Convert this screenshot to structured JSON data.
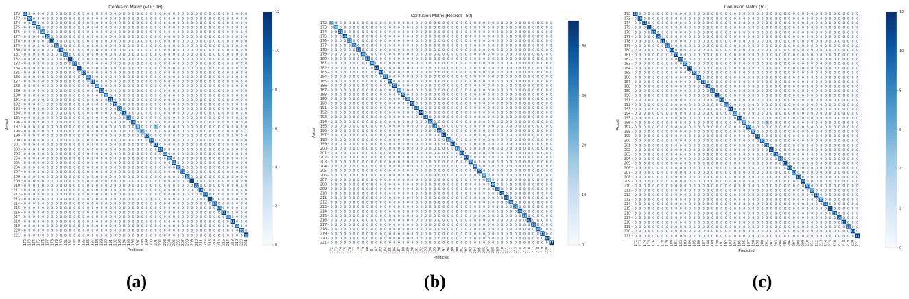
{
  "captions": [
    "(a)",
    "(b)",
    "(c)"
  ],
  "chart_data": [
    {
      "type": "heatmap",
      "title": "Confusion Matrix (VGG 16)",
      "xlabel": "Predicted",
      "ylabel": "Actual",
      "labels_start": 172,
      "labels_end": 221,
      "diagonal": [
        11,
        10,
        11,
        10,
        10,
        10,
        11,
        10,
        10,
        10,
        11,
        10,
        11,
        10,
        10,
        11,
        10,
        10,
        10,
        11,
        11,
        10,
        10,
        10,
        10,
        8,
        6,
        10,
        10,
        11,
        10,
        10,
        10,
        11,
        10,
        10,
        10,
        11,
        10,
        10,
        10,
        11,
        10,
        10,
        11,
        10,
        11,
        11,
        10,
        12
      ],
      "off_diagonal": [
        {
          "actual": 197,
          "predicted": 201,
          "value": 5
        },
        {
          "actual": 198,
          "predicted": 197,
          "value": 2
        },
        {
          "actual": 198,
          "predicted": 221,
          "value": 1
        },
        {
          "actual": 192,
          "predicted": 176,
          "value": 1
        },
        {
          "actual": 192,
          "predicted": 180,
          "value": 1
        },
        {
          "actual": 213,
          "predicted": 200,
          "value": 1
        }
      ],
      "colorbar": {
        "min": 0,
        "max": 12,
        "ticks": [
          0,
          2,
          4,
          6,
          8,
          10,
          12
        ]
      }
    },
    {
      "type": "heatmap",
      "title": "Confusion Matrix (ResNet - 50)",
      "xlabel": "Predicted",
      "ylabel": "Actual",
      "labels_start": 172,
      "labels_end": 221,
      "diagonal": [
        18,
        30,
        36,
        40,
        32,
        35,
        42,
        38,
        40,
        36,
        44,
        40,
        38,
        40,
        42,
        34,
        40,
        38,
        42,
        40,
        44,
        38,
        40,
        36,
        40,
        42,
        38,
        40,
        36,
        40,
        42,
        38,
        36,
        40,
        30,
        26,
        40,
        38,
        42,
        40,
        38,
        36,
        40,
        38,
        42,
        40,
        36,
        40,
        42,
        44
      ],
      "off_diagonal": [
        {
          "actual": 172,
          "predicted": 173,
          "value": 4
        },
        {
          "actual": 206,
          "predicted": 195,
          "value": 3
        },
        {
          "actual": 213,
          "predicted": 209,
          "value": 2
        },
        {
          "actual": 184,
          "predicted": 190,
          "value": 2
        },
        {
          "actual": 202,
          "predicted": 196,
          "value": 2
        }
      ],
      "colorbar": {
        "min": 0,
        "max": 45,
        "ticks": [
          0,
          10,
          20,
          30,
          40
        ]
      }
    },
    {
      "type": "heatmap",
      "title": "Confusion Matrix (ViT)",
      "xlabel": "Predicted",
      "ylabel": "Actual",
      "labels_start": 172,
      "labels_end": 221,
      "diagonal": [
        11,
        10,
        11,
        11,
        10,
        10,
        11,
        10,
        10,
        11,
        10,
        10,
        11,
        10,
        10,
        11,
        10,
        10,
        11,
        10,
        10,
        11,
        10,
        10,
        10,
        10,
        10,
        11,
        10,
        10,
        11,
        10,
        10,
        11,
        10,
        10,
        10,
        11,
        10,
        10,
        11,
        10,
        10,
        11,
        10,
        10,
        11,
        10,
        10,
        11
      ],
      "off_diagonal": [
        {
          "actual": 196,
          "predicted": 201,
          "value": 3
        },
        {
          "actual": 208,
          "predicted": 207,
          "value": 1
        }
      ],
      "colorbar": {
        "min": 0,
        "max": 12,
        "ticks": [
          0,
          2,
          4,
          6,
          8,
          10,
          12
        ]
      }
    }
  ]
}
